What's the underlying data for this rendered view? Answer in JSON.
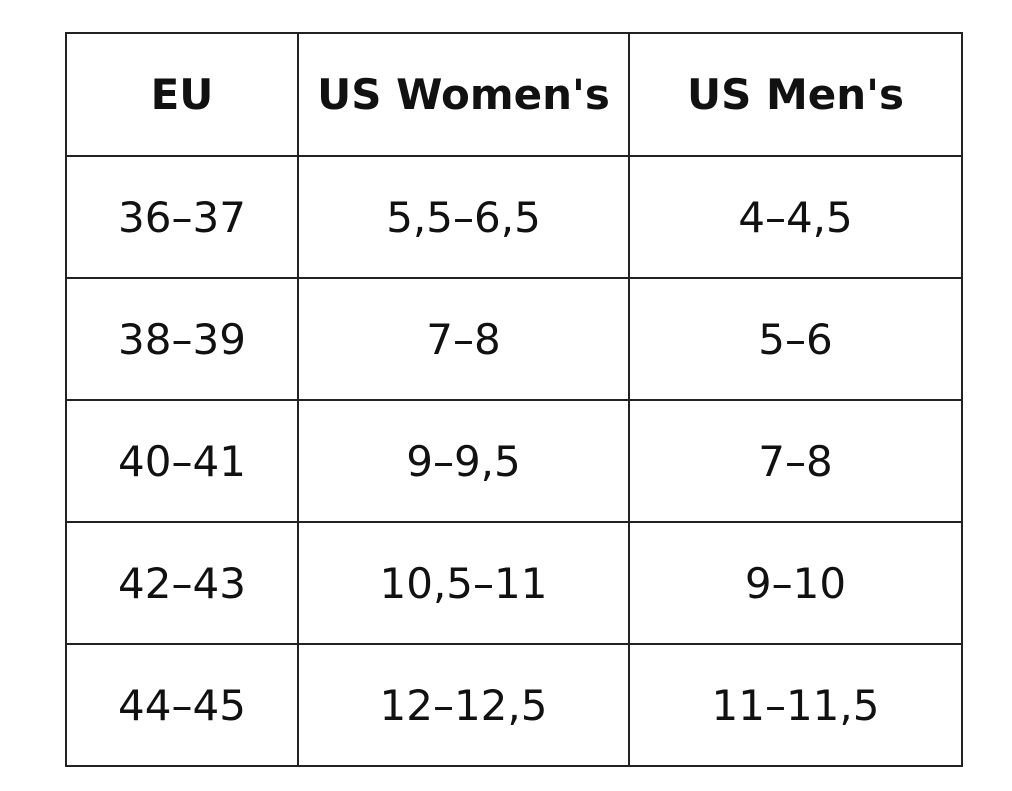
{
  "table": {
    "header": [
      "EU",
      "US Women's",
      "US Men's"
    ],
    "rows": [
      [
        "36–37",
        "5,5–6,5",
        "4–4,5"
      ],
      [
        "38–39",
        "7–8",
        "5–6"
      ],
      [
        "40–41",
        "9–9,5",
        "7–8"
      ],
      [
        "42–43",
        "10,5–11",
        "9–10"
      ],
      [
        "44–45",
        "12–12,5",
        "11–11,5"
      ]
    ]
  }
}
